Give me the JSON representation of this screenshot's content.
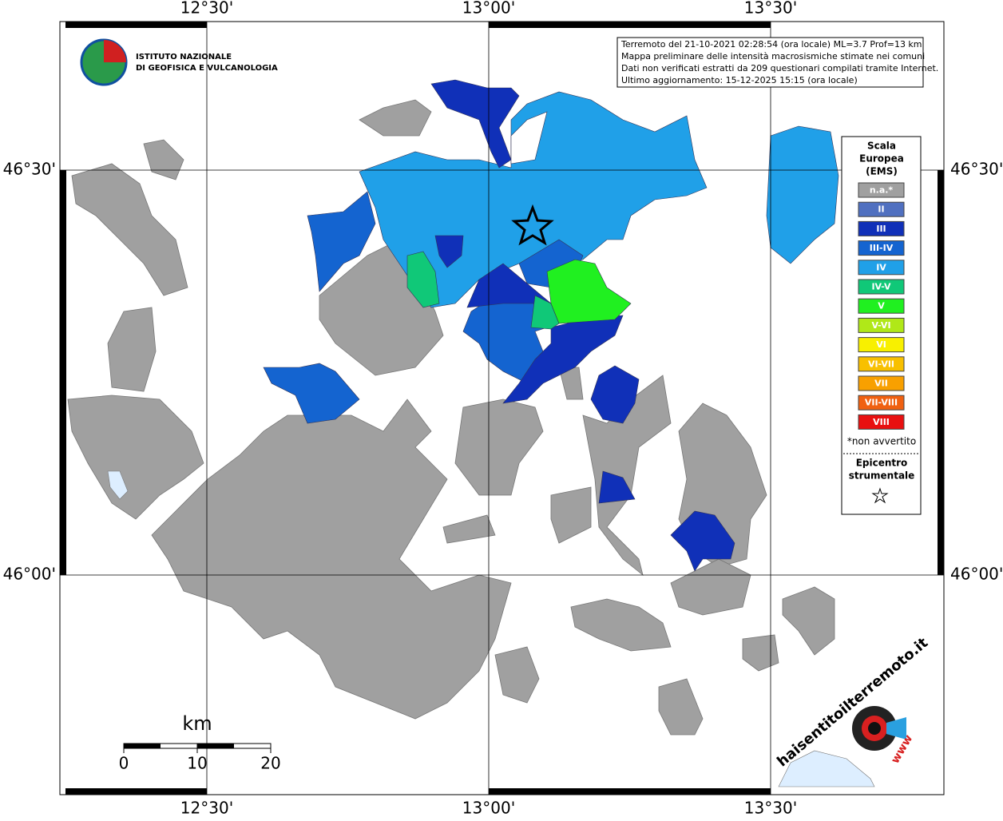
{
  "map": {
    "lon_labels": [
      "12°30'",
      "13°00'",
      "13°30'"
    ],
    "lat_labels": [
      "46°30'",
      "46°00'"
    ],
    "institute": [
      "ISTITUTO NAZIONALE",
      "DI GEOFISICA E VULCANOLOGIA"
    ],
    "info": [
      "Terremoto del 21-10-2021 02:28:54 (ora locale) ML=3.7 Prof=13 km",
      "Mappa preliminare delle intensità macrosismiche stimate nei comuni",
      "Dati non verificati estratti da 209 questionari compilati tramite Internet.",
      "Ultimo aggiornamento: 15-12-2025 15:15 (ora locale)"
    ],
    "legend": {
      "title": [
        "Scala",
        "Europea",
        "(EMS)"
      ],
      "classes": [
        {
          "label": "n.a.*",
          "color": "#a0a0a0"
        },
        {
          "label": "II",
          "color": "#5070c0"
        },
        {
          "label": "III",
          "color": "#1030b8"
        },
        {
          "label": "III-IV",
          "color": "#1464d0"
        },
        {
          "label": "IV",
          "color": "#20a0e8"
        },
        {
          "label": "IV-V",
          "color": "#10c878"
        },
        {
          "label": "V",
          "color": "#20f020"
        },
        {
          "label": "V-VI",
          "color": "#b0e818"
        },
        {
          "label": "VI",
          "color": "#f8f000"
        },
        {
          "label": "VI-VII",
          "color": "#f8c000"
        },
        {
          "label": "VII",
          "color": "#f8a000"
        },
        {
          "label": "VII-VIII",
          "color": "#f06010"
        },
        {
          "label": "VIII",
          "color": "#e81010"
        }
      ],
      "note": "*non avvertito",
      "epicenter": [
        "Epicentro",
        "strumentale"
      ]
    },
    "scale": {
      "unit": "km",
      "ticks": [
        0,
        10,
        20
      ]
    },
    "logo": {
      "text": "haisentitoilterremoto.it",
      "url": "www"
    }
  }
}
